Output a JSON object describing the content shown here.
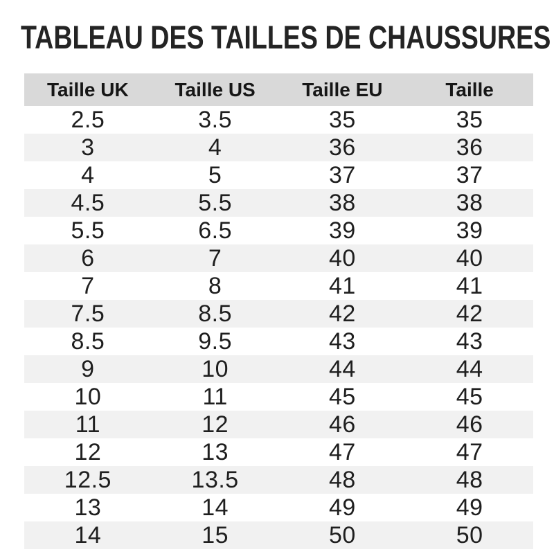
{
  "page": {
    "title": "TABLEAU DES TAILLES DE CHAUSSURES"
  },
  "table": {
    "headers": [
      "Taille UK",
      "Taille US",
      "Taille EU",
      "Taille"
    ],
    "rows": [
      [
        "2.5",
        "3.5",
        "35",
        "35"
      ],
      [
        "3",
        "4",
        "36",
        "36"
      ],
      [
        "4",
        "5",
        "37",
        "37"
      ],
      [
        "4.5",
        "5.5",
        "38",
        "38"
      ],
      [
        "5.5",
        "6.5",
        "39",
        "39"
      ],
      [
        "6",
        "7",
        "40",
        "40"
      ],
      [
        "7",
        "8",
        "41",
        "41"
      ],
      [
        "7.5",
        "8.5",
        "42",
        "42"
      ],
      [
        "8.5",
        "9.5",
        "43",
        "43"
      ],
      [
        "9",
        "10",
        "44",
        "44"
      ],
      [
        "10",
        "11",
        "45",
        "45"
      ],
      [
        "11",
        "12",
        "46",
        "46"
      ],
      [
        "12",
        "13",
        "47",
        "47"
      ],
      [
        "12.5",
        "13.5",
        "48",
        "48"
      ],
      [
        "13",
        "14",
        "49",
        "49"
      ],
      [
        "14",
        "15",
        "50",
        "50"
      ]
    ],
    "colors": {
      "header_bg": "#d9d9d9",
      "alt_row_bg": "#f1f1f1",
      "cell_text": "#1f1f1f"
    }
  },
  "chart_data": {
    "type": "table",
    "title": "TABLEAU DES TAILLES DE CHAUSSURES",
    "columns": [
      "Taille UK",
      "Taille US",
      "Taille EU",
      "Taille"
    ],
    "rows": [
      [
        "2.5",
        "3.5",
        "35",
        "35"
      ],
      [
        "3",
        "4",
        "36",
        "36"
      ],
      [
        "4",
        "5",
        "37",
        "37"
      ],
      [
        "4.5",
        "5.5",
        "38",
        "38"
      ],
      [
        "5.5",
        "6.5",
        "39",
        "39"
      ],
      [
        "6",
        "7",
        "40",
        "40"
      ],
      [
        "7",
        "8",
        "41",
        "41"
      ],
      [
        "7.5",
        "8.5",
        "42",
        "42"
      ],
      [
        "8.5",
        "9.5",
        "43",
        "43"
      ],
      [
        "9",
        "10",
        "44",
        "44"
      ],
      [
        "10",
        "11",
        "45",
        "45"
      ],
      [
        "11",
        "12",
        "46",
        "46"
      ],
      [
        "12",
        "13",
        "47",
        "47"
      ],
      [
        "12.5",
        "13.5",
        "48",
        "48"
      ],
      [
        "13",
        "14",
        "49",
        "49"
      ],
      [
        "14",
        "15",
        "50",
        "50"
      ]
    ],
    "layout": {
      "striped_rows": true,
      "stripe_pattern": "even rows shaded",
      "header_background": "#d9d9d9",
      "stripe_background": "#f1f1f1"
    }
  }
}
